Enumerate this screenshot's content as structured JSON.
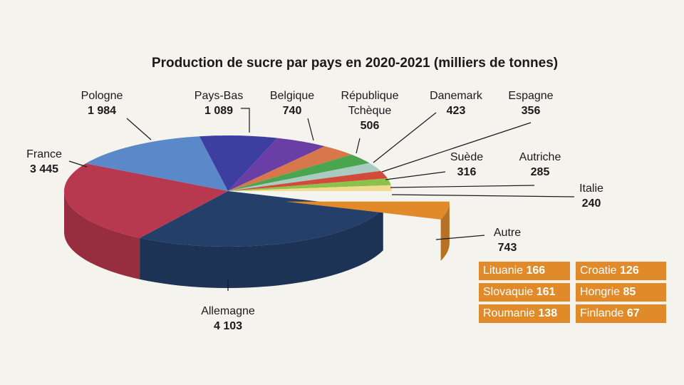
{
  "chart_data": {
    "type": "pie",
    "title": "Production de sucre par pays en 2020-2021 (milliers de tonnes)",
    "categories": [
      "Autre",
      "Allemagne",
      "France",
      "Pologne",
      "Pays-Bas",
      "Belgique",
      "République Tchèque",
      "Danemark",
      "Espagne",
      "Suède",
      "Autriche",
      "Italie"
    ],
    "values": [
      743,
      4103,
      3445,
      1984,
      1089,
      740,
      506,
      423,
      356,
      316,
      285,
      240
    ],
    "value_labels": [
      "743",
      "4 103",
      "3 445",
      "1 984",
      "1 089",
      "740",
      "506",
      "423",
      "356",
      "316",
      "285",
      "240"
    ],
    "colors": [
      "#e08a2a",
      "#243f69",
      "#b8394f",
      "#5b88c9",
      "#3d3fa0",
      "#6a3fa5",
      "#d8774a",
      "#4aa64e",
      "#a9cbc2",
      "#d24a3a",
      "#8cc24c",
      "#f1da92"
    ],
    "exploded": "Autre",
    "breakdown": {
      "categories": [
        "Lituanie",
        "Croatie",
        "Slovaquie",
        "Hongrie",
        "Roumanie",
        "Finlande"
      ],
      "values": [
        166,
        126,
        161,
        85,
        138,
        67
      ],
      "color": "#e08a2a"
    }
  }
}
